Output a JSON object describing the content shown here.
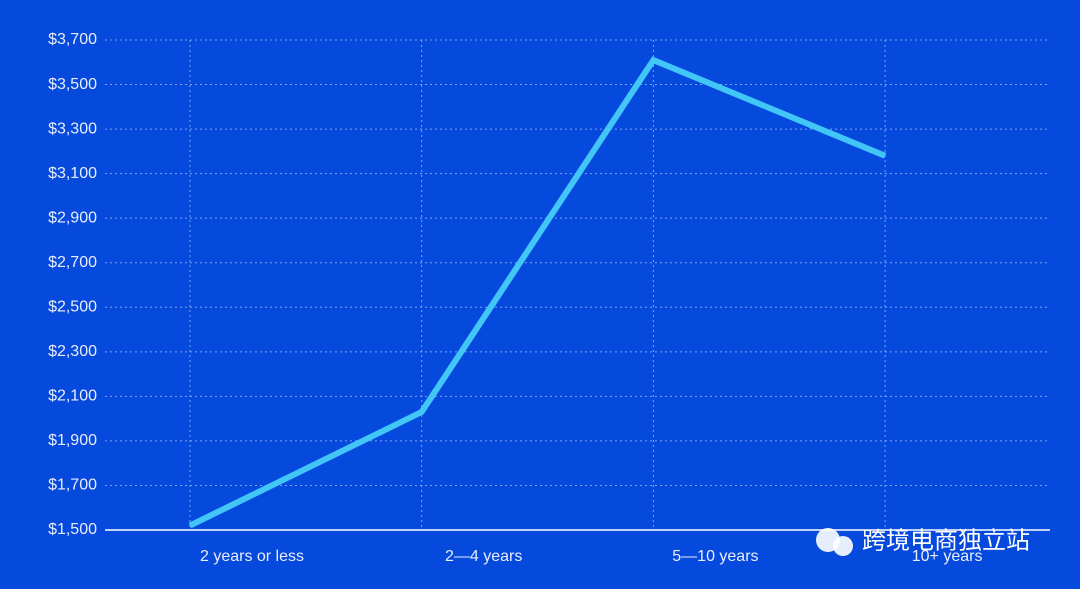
{
  "chart_data": {
    "type": "line",
    "categories": [
      "2 years or less",
      "2—4 years",
      "5—10 years",
      "10+ years"
    ],
    "series": [
      {
        "color": "#42c6f7",
        "values": [
          1520,
          2030,
          3610,
          3180
        ]
      }
    ],
    "ylim": [
      1500,
      3700
    ],
    "yticks": [
      {
        "value": 1500,
        "label": "$1,500"
      },
      {
        "value": 1700,
        "label": "$1,700"
      },
      {
        "value": 1900,
        "label": "$1,900"
      },
      {
        "value": 2100,
        "label": "$2,100"
      },
      {
        "value": 2300,
        "label": "$2,300"
      },
      {
        "value": 2500,
        "label": "$2,500"
      },
      {
        "value": 2700,
        "label": "$2,700"
      },
      {
        "value": 2900,
        "label": "$2,900"
      },
      {
        "value": 3100,
        "label": "$3,100"
      },
      {
        "value": 3300,
        "label": "$3,300"
      },
      {
        "value": 3500,
        "label": "$3,500"
      },
      {
        "value": 3700,
        "label": "$3,700"
      }
    ],
    "grid": true,
    "watermark": "跨境电商独立站"
  }
}
